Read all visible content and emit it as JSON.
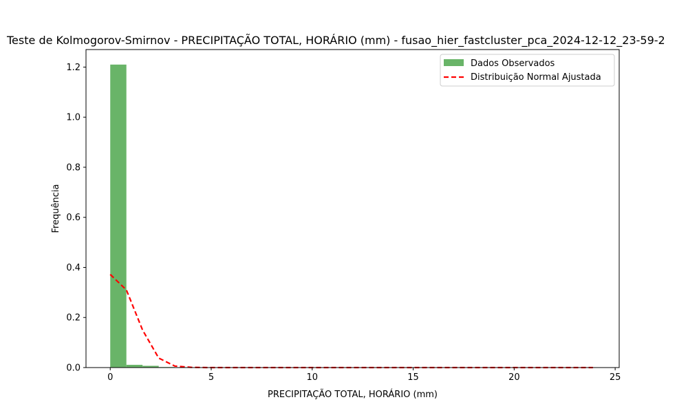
{
  "chart_data": {
    "type": "bar",
    "title": "Teste de Kolmogorov-Smirnov - PRECIPITAÇÃO TOTAL, HORÁRIO (mm) - fusao_hier_fastcluster_pca_2024-12-12_23-59-2",
    "xlabel": "PRECIPITAÇÃO TOTAL, HORÁRIO (mm)",
    "ylabel": "Frequência",
    "xlim": [
      -1.2,
      25.2
    ],
    "ylim": [
      0,
      1.27
    ],
    "xticks": [
      0,
      5,
      10,
      15,
      20,
      25
    ],
    "yticks": [
      0.0,
      0.2,
      0.4,
      0.6,
      0.8,
      1.0,
      1.2
    ],
    "xtick_labels": [
      "0",
      "5",
      "10",
      "15",
      "20",
      "25"
    ],
    "ytick_labels": [
      "0.0",
      "0.2",
      "0.4",
      "0.6",
      "0.8",
      "1.0",
      "1.2"
    ],
    "histogram": {
      "name": "Dados Observados",
      "color": "#69b468",
      "bin_width": 0.8,
      "bin_starts": [
        0.0,
        0.8,
        1.6,
        2.4,
        3.2,
        4.0,
        4.8,
        5.6,
        6.4,
        7.2
      ],
      "values": [
        1.21,
        0.011,
        0.007,
        0.002,
        0.001,
        0.0005,
        0.0003,
        0.0002,
        0.0001,
        0.0001
      ]
    },
    "line": {
      "name": "Distribuição Normal Ajustada",
      "color": "#ff0000",
      "style": "dashed",
      "x": [
        0.0,
        0.8,
        1.6,
        2.4,
        3.2,
        4.0,
        4.8,
        6.0,
        8.0,
        10.0,
        12.0,
        14.0,
        16.0,
        18.0,
        20.0,
        22.0,
        23.9
      ],
      "y": [
        0.372,
        0.31,
        0.15,
        0.038,
        0.006,
        0.001,
        0.0,
        0.0,
        0.0,
        0.0,
        0.0,
        0.0,
        0.0,
        0.0,
        0.0,
        0.0,
        0.0
      ]
    },
    "legend_placement": "top-right",
    "grid": false
  }
}
